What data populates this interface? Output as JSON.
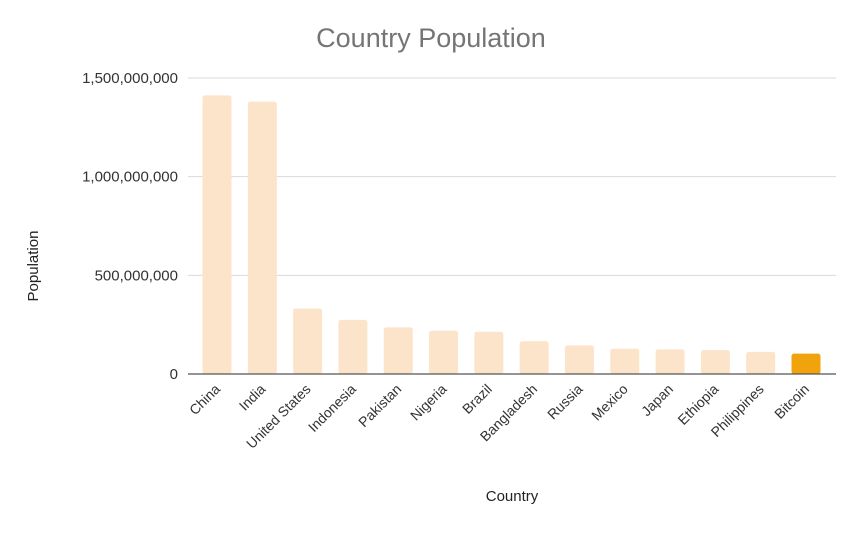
{
  "chart_data": {
    "type": "bar",
    "title": "Country Population",
    "xlabel": "Country",
    "ylabel": "Population",
    "categories": [
      "China",
      "India",
      "United States",
      "Indonesia",
      "Pakistan",
      "Nigeria",
      "Brazil",
      "Bangladesh",
      "Russia",
      "Mexico",
      "Japan",
      "Ethiopia",
      "Philippines",
      "Bitcoin"
    ],
    "values": [
      1412000000,
      1380000000,
      332000000,
      274000000,
      236000000,
      219000000,
      214000000,
      166000000,
      145000000,
      128000000,
      125000000,
      121000000,
      112000000,
      103000000
    ],
    "ylim": [
      0,
      1500000000
    ],
    "yticks": [
      0,
      500000000,
      1000000000,
      1500000000
    ],
    "ytick_labels": [
      "0",
      "500,000,000",
      "1,000,000,000",
      "1,500,000,000"
    ],
    "grid": true,
    "legend": "none",
    "colors": {
      "default": "#fce4ca",
      "highlight": "#f0a30a",
      "highlight_category": "Bitcoin"
    }
  }
}
